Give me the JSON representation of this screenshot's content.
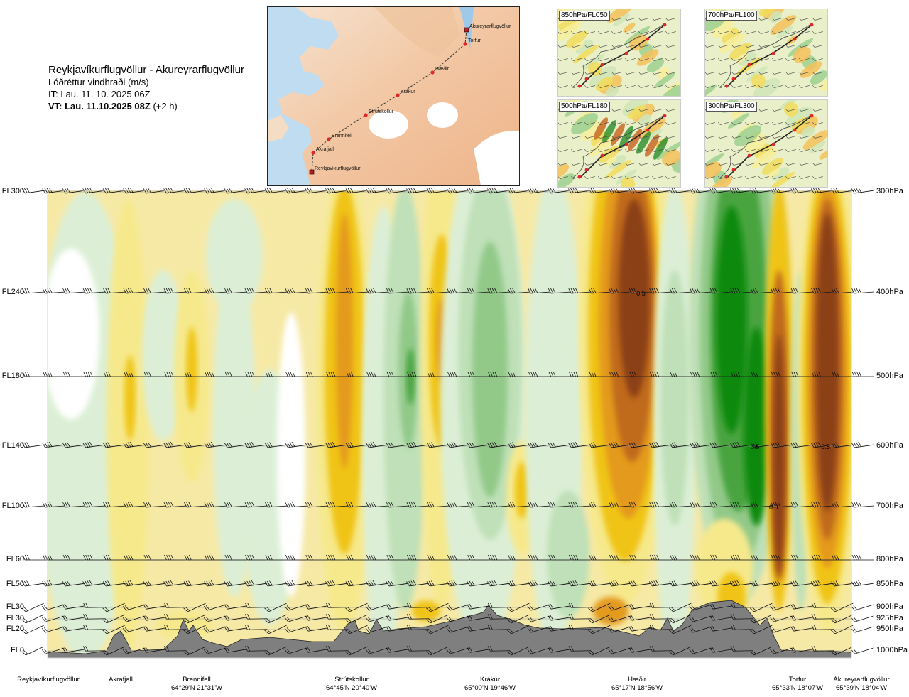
{
  "header": {
    "title": "Reykjavíkurflugvöllur - Akureyrarflugvöllur",
    "variable": "Lóðréttur vindhraði (m/s)",
    "issue_time": "IT: Lau. 11. 10. 2025 06Z",
    "valid_time": "VT: Lau. 11.10.2025 08Z",
    "valid_offset": "(+2 h)"
  },
  "route_map": {
    "waypoints": [
      {
        "name": "Akureyrarflugvöllur"
      },
      {
        "name": "Torfur"
      },
      {
        "name": "Hæðir"
      },
      {
        "name": "Krákur"
      },
      {
        "name": "Strútskollur"
      },
      {
        "name": "Brennifell"
      },
      {
        "name": "Akrafjall"
      },
      {
        "name": "Reykjavíkurflugvöllur"
      }
    ]
  },
  "mini_maps": [
    {
      "label": "850hPa/FL050"
    },
    {
      "label": "700hPa/FL100"
    },
    {
      "label": "500hPa/FL180"
    },
    {
      "label": "300hPa/FL300"
    }
  ],
  "colors": {
    "strong_down": "#8b3f14",
    "down2": "#c06a1c",
    "down3": "#e49a1e",
    "down4": "#f0c419",
    "down5": "#f6e98c",
    "neutral": "#ffffff",
    "up1": "#dcefd6",
    "up2": "#bfe0b8",
    "up3": "#92c989",
    "up4": "#4aa441",
    "up5": "#118a0c",
    "terrain": "#7f7f7f"
  },
  "chart_data": {
    "type": "heatmap",
    "y_axis_left": [
      {
        "label": "FL300",
        "p": 300
      },
      {
        "label": "FL240",
        "p": 400
      },
      {
        "label": "FL180",
        "p": 500
      },
      {
        "label": "FL140",
        "p": 600
      },
      {
        "label": "FL100",
        "p": 700
      },
      {
        "label": "FL60",
        "p": 800
      },
      {
        "label": "FL50",
        "p": 850
      },
      {
        "label": "FL30",
        "p": 900
      },
      {
        "label": "FL30",
        "p": 925
      },
      {
        "label": "FL20",
        "p": 950
      },
      {
        "label": "FL0",
        "p": 1000
      }
    ],
    "y_axis_right": [
      {
        "label": "300hPa",
        "p": 300
      },
      {
        "label": "400hPa",
        "p": 400
      },
      {
        "label": "500hPa",
        "p": 500
      },
      {
        "label": "600hPa",
        "p": 600
      },
      {
        "label": "700hPa",
        "p": 700
      },
      {
        "label": "800hPa",
        "p": 800
      },
      {
        "label": "850hPa",
        "p": 850
      },
      {
        "label": "900hPa",
        "p": 900
      },
      {
        "label": "925hPa",
        "p": 925
      },
      {
        "label": "950hPa",
        "p": 950
      },
      {
        "label": "1000hPa",
        "p": 1000
      }
    ],
    "x_locations": [
      {
        "name": "Reykjavíkurflugvöllur",
        "coord": "",
        "x": 0
      },
      {
        "name": "Akrafjall",
        "coord": "",
        "x": 0.09
      },
      {
        "name": "Brennifell",
        "coord": "64°29'N 21°31'W",
        "x": 0.185
      },
      {
        "name": "Strútskollur",
        "coord": "64°45'N 20°40'W",
        "x": 0.38
      },
      {
        "name": "Krákur",
        "coord": "65°00'N 19°46'W",
        "x": 0.57
      },
      {
        "name": "Hæðir",
        "coord": "65°17'N 18°56'W",
        "x": 0.76
      },
      {
        "name": "Torfur",
        "coord": "65°33'N 18°07'W",
        "x": 0.948
      },
      {
        "name": "Akureyrarflugvöllur",
        "coord": "65°39'N 18°04'W",
        "x": 1.0
      }
    ],
    "value_labels": [
      {
        "text": "0.5",
        "x": 0.738,
        "p": 400
      },
      {
        "text": "0.5",
        "x": 0.88,
        "p": 600
      },
      {
        "text": "0.5",
        "x": 0.968,
        "p": 600
      },
      {
        "text": "0.0",
        "x": 0.903,
        "p": 700
      }
    ]
  }
}
